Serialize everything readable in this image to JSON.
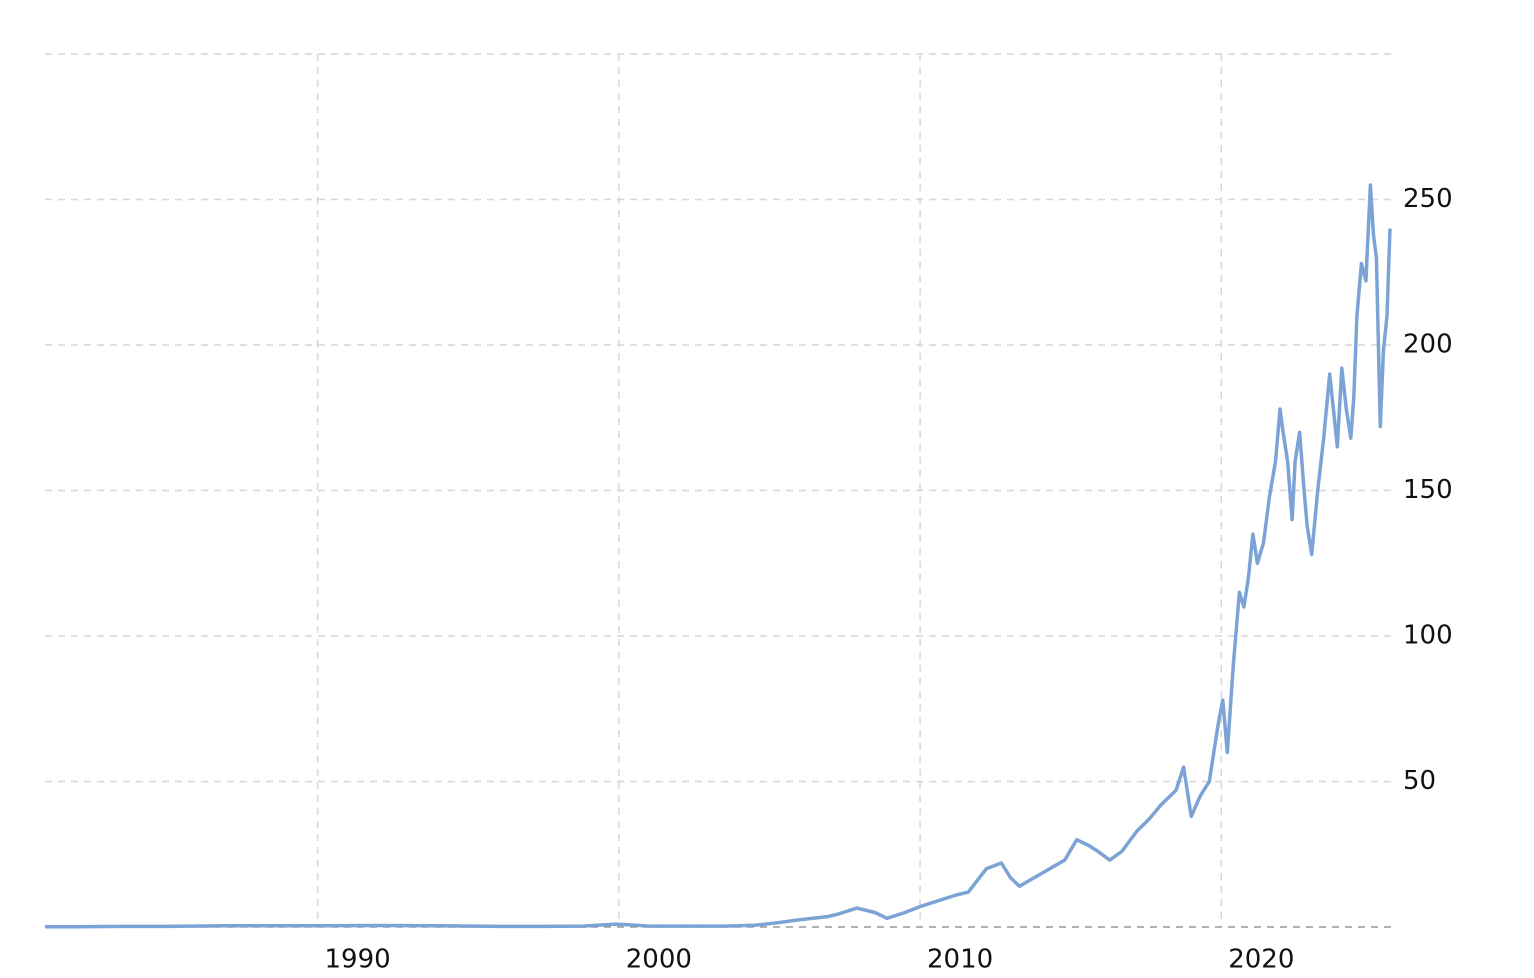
{
  "chart_data": {
    "type": "line",
    "color": "#7ba3d6",
    "x": [
      1980.95,
      1982,
      1983.5,
      1985,
      1987,
      1988.5,
      1990,
      1992,
      1994,
      1996,
      1997.5,
      1998.8,
      1999.9,
      2000.3,
      2001,
      2002.5,
      2003.5,
      2004.5,
      2005.3,
      2006,
      2006.9,
      2007.3,
      2007.9,
      2008.5,
      2008.9,
      2009.5,
      2010,
      2010.6,
      2011.2,
      2011.6,
      2012.2,
      2012.7,
      2013.0,
      2013.3,
      2013.8,
      2014.3,
      2014.8,
      2015.2,
      2015.6,
      2015.9,
      2016.3,
      2016.7,
      2017.2,
      2017.6,
      2018.0,
      2018.5,
      2018.75,
      2019.0,
      2019.3,
      2019.6,
      2019.9,
      2020.05,
      2020.2,
      2020.4,
      2020.6,
      2020.75,
      2020.9,
      2021.05,
      2021.2,
      2021.4,
      2021.6,
      2021.8,
      2021.95,
      2022.05,
      2022.2,
      2022.35,
      2022.45,
      2022.6,
      2022.75,
      2022.85,
      2023.0,
      2023.2,
      2023.4,
      2023.6,
      2023.75,
      2023.85,
      2024.0,
      2024.15,
      2024.3,
      2024.4,
      2024.5,
      2024.65,
      2024.8,
      2024.95,
      2025.05,
      2025.15,
      2025.28,
      2025.38,
      2025.5,
      2025.6
    ],
    "values": [
      0.1,
      0.1,
      0.2,
      0.2,
      0.4,
      0.4,
      0.4,
      0.5,
      0.4,
      0.2,
      0.2,
      0.3,
      1.0,
      0.8,
      0.3,
      0.3,
      0.3,
      0.6,
      1.5,
      2.5,
      3.5,
      4.5,
      6.5,
      5,
      3,
      5,
      7,
      9,
      11,
      12,
      20,
      22,
      17,
      14,
      17,
      20,
      23,
      30,
      28,
      26,
      23,
      26,
      33,
      37,
      42,
      47,
      55,
      38,
      45,
      50,
      70,
      78,
      60,
      90,
      115,
      110,
      120,
      135,
      125,
      132,
      148,
      160,
      178,
      170,
      160,
      140,
      160,
      170,
      150,
      138,
      128,
      150,
      168,
      190,
      175,
      165,
      192,
      178,
      168,
      182,
      210,
      228,
      222,
      255,
      238,
      230,
      172,
      198,
      210,
      240
    ],
    "xlim": [
      1980.95,
      2025.7
    ],
    "xticks": [
      1990,
      2000,
      2010,
      2020
    ],
    "ylim": [
      0,
      300
    ],
    "yticks": [
      50,
      100,
      150,
      200,
      250
    ],
    "grid": true
  }
}
